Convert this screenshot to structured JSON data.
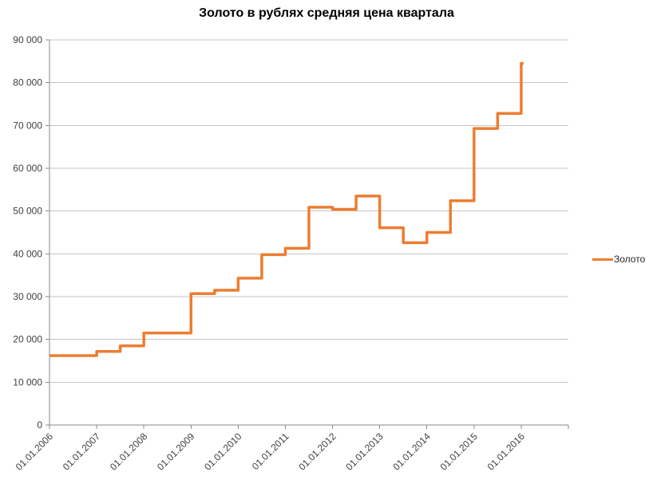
{
  "title": "Золото в рублях средняя цена квартала",
  "legend": {
    "series_label": "Золото"
  },
  "colors": {
    "series_line": "#ED7D31",
    "gridline": "#C6C6C6",
    "axis_line": "#898989",
    "tick_label": "#404040",
    "title_text": "#000000",
    "background": "#FFFFFF"
  },
  "chart_data": {
    "type": "line",
    "subtype": "step-after",
    "title": "Золото в рублях средняя цена квартала",
    "xlabel": "",
    "ylabel": "",
    "ylim": [
      0,
      90000
    ],
    "x_years_span": 11,
    "grid": "horizontal-only",
    "legend_position": "right-middle",
    "y_ticks": [
      {
        "value": 0,
        "label": "0"
      },
      {
        "value": 10000,
        "label": "10 000"
      },
      {
        "value": 20000,
        "label": "20 000"
      },
      {
        "value": 30000,
        "label": "30 000"
      },
      {
        "value": 40000,
        "label": "40 000"
      },
      {
        "value": 50000,
        "label": "50 000"
      },
      {
        "value": 60000,
        "label": "60 000"
      },
      {
        "value": 70000,
        "label": "70 000"
      },
      {
        "value": 80000,
        "label": "80 000"
      },
      {
        "value": 90000,
        "label": "90 000"
      }
    ],
    "x_tick_labels": [
      "01.01.2006",
      "01.01.2007",
      "01.01.2008",
      "01.01.2009",
      "01.01.2010",
      "01.01.2011",
      "01.01.2012",
      "01.01.2013",
      "01.01.2014",
      "01.01.2015",
      "01.01.2016"
    ],
    "series": [
      {
        "name": "Золото",
        "color": "#ED7D31",
        "points": [
          {
            "date": "01.01.2006",
            "value": 16200
          },
          {
            "date": "01.04.2006",
            "value": 16200
          },
          {
            "date": "01.07.2006",
            "value": 16200
          },
          {
            "date": "01.10.2006",
            "value": 16200
          },
          {
            "date": "01.01.2007",
            "value": 17200
          },
          {
            "date": "01.04.2007",
            "value": 17200
          },
          {
            "date": "01.07.2007",
            "value": 18500
          },
          {
            "date": "01.10.2007",
            "value": 18500
          },
          {
            "date": "01.01.2008",
            "value": 21500
          },
          {
            "date": "01.04.2008",
            "value": 21500
          },
          {
            "date": "01.07.2008",
            "value": 21500
          },
          {
            "date": "01.10.2008",
            "value": 21500
          },
          {
            "date": "01.01.2009",
            "value": 30700
          },
          {
            "date": "01.04.2009",
            "value": 30700
          },
          {
            "date": "01.07.2009",
            "value": 31500
          },
          {
            "date": "01.10.2009",
            "value": 31500
          },
          {
            "date": "01.01.2010",
            "value": 34300
          },
          {
            "date": "01.04.2010",
            "value": 34300
          },
          {
            "date": "01.07.2010",
            "value": 39800
          },
          {
            "date": "01.10.2010",
            "value": 39800
          },
          {
            "date": "01.01.2011",
            "value": 41300
          },
          {
            "date": "01.04.2011",
            "value": 41300
          },
          {
            "date": "01.07.2011",
            "value": 50900
          },
          {
            "date": "01.10.2011",
            "value": 50900
          },
          {
            "date": "01.01.2012",
            "value": 50400
          },
          {
            "date": "01.04.2012",
            "value": 50400
          },
          {
            "date": "01.07.2012",
            "value": 53500
          },
          {
            "date": "01.10.2012",
            "value": 53500
          },
          {
            "date": "01.01.2013",
            "value": 46100
          },
          {
            "date": "01.04.2013",
            "value": 46100
          },
          {
            "date": "01.07.2013",
            "value": 42600
          },
          {
            "date": "01.10.2013",
            "value": 42600
          },
          {
            "date": "01.01.2014",
            "value": 45000
          },
          {
            "date": "01.04.2014",
            "value": 45000
          },
          {
            "date": "01.07.2014",
            "value": 52400
          },
          {
            "date": "01.10.2014",
            "value": 52400
          },
          {
            "date": "01.01.2015",
            "value": 69300
          },
          {
            "date": "01.04.2015",
            "value": 69300
          },
          {
            "date": "01.07.2015",
            "value": 72800
          },
          {
            "date": "01.10.2015",
            "value": 72800
          },
          {
            "date": "01.01.2016",
            "value": 84500
          }
        ]
      }
    ]
  }
}
